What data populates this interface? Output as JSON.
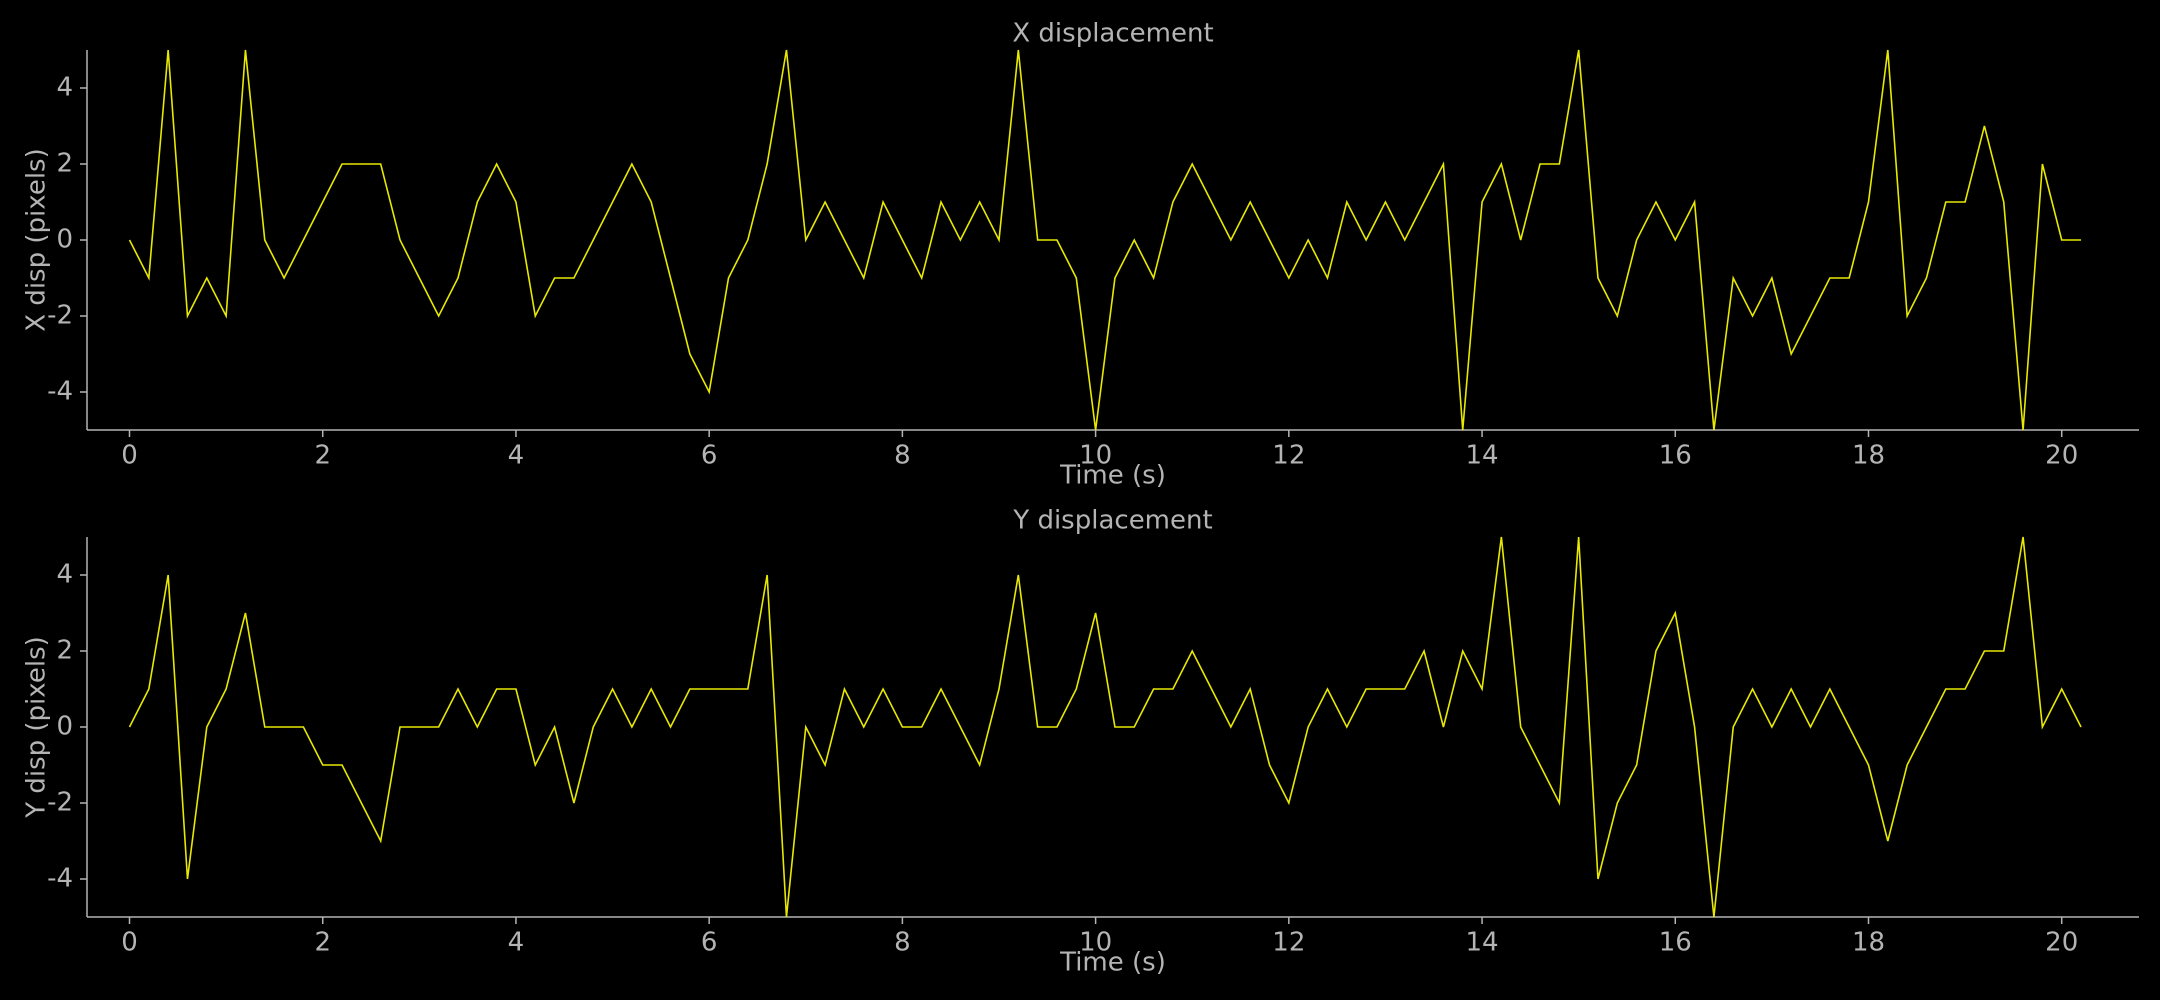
{
  "chart_data": [
    {
      "type": "line",
      "title": "X displacement",
      "xlabel": "Time (s)",
      "ylabel": "X disp (pixels)",
      "xlim": [
        -0.44,
        20.8
      ],
      "ylim": [
        -5,
        5
      ],
      "xticks": [
        0,
        2,
        4,
        6,
        8,
        10,
        12,
        14,
        16,
        18,
        20
      ],
      "yticks": [
        -4,
        -2,
        0,
        2,
        4
      ],
      "x": [
        0,
        0.2,
        0.4,
        0.6,
        0.8,
        1,
        1.2,
        1.4,
        1.6,
        1.8,
        2,
        2.2,
        2.4,
        2.6,
        2.8,
        3,
        3.2,
        3.4,
        3.6,
        3.8,
        4,
        4.2,
        4.4,
        4.6,
        4.8,
        5,
        5.2,
        5.4,
        5.6,
        5.8,
        6,
        6.2,
        6.4,
        6.6,
        6.8,
        7,
        7.2,
        7.4,
        7.6,
        7.8,
        8,
        8.2,
        8.4,
        8.6,
        8.8,
        9,
        9.2,
        9.4,
        9.6,
        9.8,
        10,
        10.2,
        10.4,
        10.6,
        10.8,
        11,
        11.2,
        11.4,
        11.6,
        11.8,
        12,
        12.2,
        12.4,
        12.6,
        12.8,
        13,
        13.2,
        13.4,
        13.6,
        13.8,
        14,
        14.2,
        14.4,
        14.6,
        14.8,
        15,
        15.2,
        15.4,
        15.6,
        15.8,
        16,
        16.2,
        16.4,
        16.6,
        16.8,
        17,
        17.2,
        17.4,
        17.6,
        17.8,
        18,
        18.2,
        18.4,
        18.6,
        18.8,
        19,
        19.2,
        19.4,
        19.6,
        19.8,
        20,
        20.2
      ],
      "series": [
        {
          "color": "#e8e800",
          "values": [
            0,
            -1,
            5,
            -2,
            -1,
            -2,
            5,
            0,
            -1,
            0,
            1,
            2,
            2,
            2,
            0,
            -1,
            -2,
            -1,
            1,
            2,
            1,
            -2,
            -1,
            -1,
            0,
            1,
            2,
            1,
            -1,
            -3,
            -4,
            -1,
            0,
            2,
            5,
            0,
            1,
            0,
            -1,
            1,
            0,
            -1,
            1,
            0,
            1,
            0,
            5,
            0,
            0,
            -1,
            -5,
            -1,
            0,
            -1,
            1,
            2,
            1,
            0,
            1,
            0,
            -1,
            0,
            -1,
            1,
            0,
            1,
            0,
            1,
            2,
            -5,
            1,
            2,
            0,
            2,
            2,
            5,
            -1,
            -2,
            0,
            1,
            0,
            1,
            -5,
            -1,
            -2,
            -1,
            -3,
            -2,
            -1,
            -1,
            1,
            5,
            -2,
            -1,
            1,
            1,
            3,
            1,
            -5,
            2,
            0,
            0
          ]
        }
      ]
    },
    {
      "type": "line",
      "title": "Y displacement",
      "xlabel": "Time (s)",
      "ylabel": "Y disp (pixels)",
      "xlim": [
        -0.44,
        20.8
      ],
      "ylim": [
        -5,
        5
      ],
      "xticks": [
        0,
        2,
        4,
        6,
        8,
        10,
        12,
        14,
        16,
        18,
        20
      ],
      "yticks": [
        -4,
        -2,
        0,
        2,
        4
      ],
      "x": [
        0,
        0.2,
        0.4,
        0.6,
        0.8,
        1,
        1.2,
        1.4,
        1.6,
        1.8,
        2,
        2.2,
        2.4,
        2.6,
        2.8,
        3,
        3.2,
        3.4,
        3.6,
        3.8,
        4,
        4.2,
        4.4,
        4.6,
        4.8,
        5,
        5.2,
        5.4,
        5.6,
        5.8,
        6,
        6.2,
        6.4,
        6.6,
        6.8,
        7,
        7.2,
        7.4,
        7.6,
        7.8,
        8,
        8.2,
        8.4,
        8.6,
        8.8,
        9,
        9.2,
        9.4,
        9.6,
        9.8,
        10,
        10.2,
        10.4,
        10.6,
        10.8,
        11,
        11.2,
        11.4,
        11.6,
        11.8,
        12,
        12.2,
        12.4,
        12.6,
        12.8,
        13,
        13.2,
        13.4,
        13.6,
        13.8,
        14,
        14.2,
        14.4,
        14.6,
        14.8,
        15,
        15.2,
        15.4,
        15.6,
        15.8,
        16,
        16.2,
        16.4,
        16.6,
        16.8,
        17,
        17.2,
        17.4,
        17.6,
        17.8,
        18,
        18.2,
        18.4,
        18.6,
        18.8,
        19,
        19.2,
        19.4,
        19.6,
        19.8,
        20,
        20.2
      ],
      "series": [
        {
          "color": "#e8e800",
          "values": [
            0,
            1,
            4,
            -4,
            0,
            1,
            3,
            0,
            0,
            0,
            -1,
            -1,
            -2,
            -3,
            0,
            0,
            0,
            1,
            0,
            1,
            1,
            -1,
            0,
            -2,
            0,
            1,
            0,
            1,
            0,
            1,
            1,
            1,
            1,
            4,
            -5,
            0,
            -1,
            1,
            0,
            1,
            0,
            0,
            1,
            0,
            -1,
            1,
            4,
            0,
            0,
            1,
            3,
            0,
            0,
            1,
            1,
            2,
            1,
            0,
            1,
            -1,
            -2,
            0,
            1,
            0,
            1,
            1,
            1,
            2,
            0,
            2,
            1,
            5,
            0,
            -1,
            -2,
            5,
            -4,
            -2,
            -1,
            2,
            3,
            0,
            -5,
            0,
            1,
            0,
            1,
            0,
            1,
            0,
            -1,
            -3,
            -1,
            0,
            1,
            1,
            2,
            2,
            5,
            0,
            1,
            0
          ]
        }
      ]
    }
  ]
}
